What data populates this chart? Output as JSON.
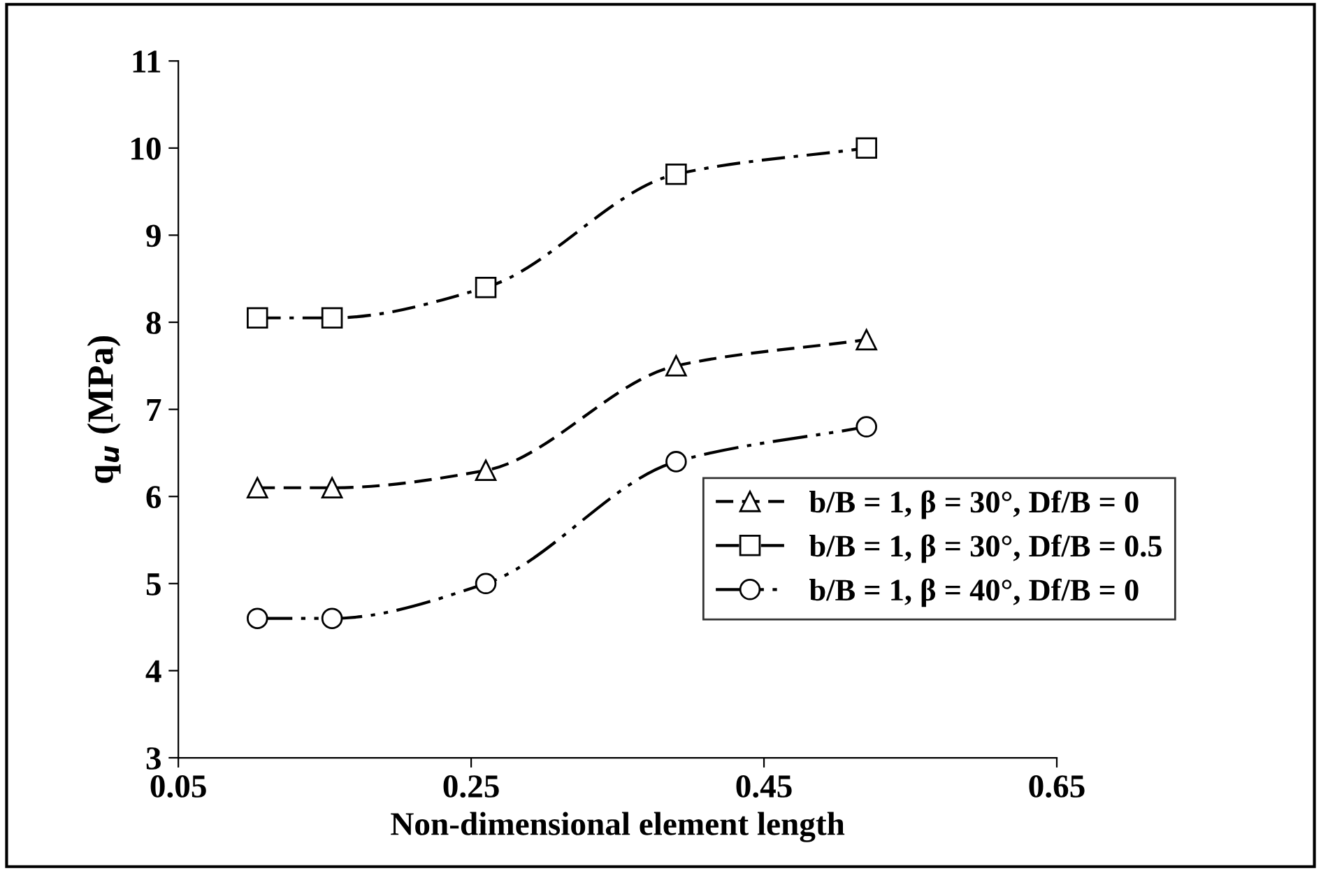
{
  "chart_data": {
    "type": "line",
    "xlabel": "Non-dimensional element length",
    "ylabel": "q$_{u}$ (MPa)",
    "x": [
      0.104,
      0.155,
      0.26,
      0.39,
      0.52
    ],
    "series": [
      {
        "name": "b/B = 1, β = 30°, Df/B = 0",
        "color": "#000000",
        "marker": "triangle",
        "line_style": "dashed",
        "values": [
          6.1,
          6.1,
          6.3,
          7.5,
          7.8
        ]
      },
      {
        "name": "b/B = 1, β = 30°, Df/B = 0.5",
        "color": "#000000",
        "marker": "square",
        "line_style": "dashdot",
        "values": [
          8.05,
          8.05,
          8.4,
          9.7,
          10.0
        ]
      },
      {
        "name": "b/B = 1, β = 40°, Df/B = 0",
        "color": "#000000",
        "marker": "circle",
        "line_style": "dashdotdot",
        "values": [
          4.6,
          4.6,
          5.0,
          6.4,
          6.8
        ]
      }
    ],
    "xlim": [
      0.05,
      0.65
    ],
    "xticks": [
      0.05,
      0.25,
      0.45,
      0.65
    ],
    "ylim": [
      3,
      11
    ],
    "yticks": [
      3,
      4,
      5,
      6,
      7,
      8,
      9,
      10,
      11
    ],
    "grid": false,
    "legend": "right"
  }
}
